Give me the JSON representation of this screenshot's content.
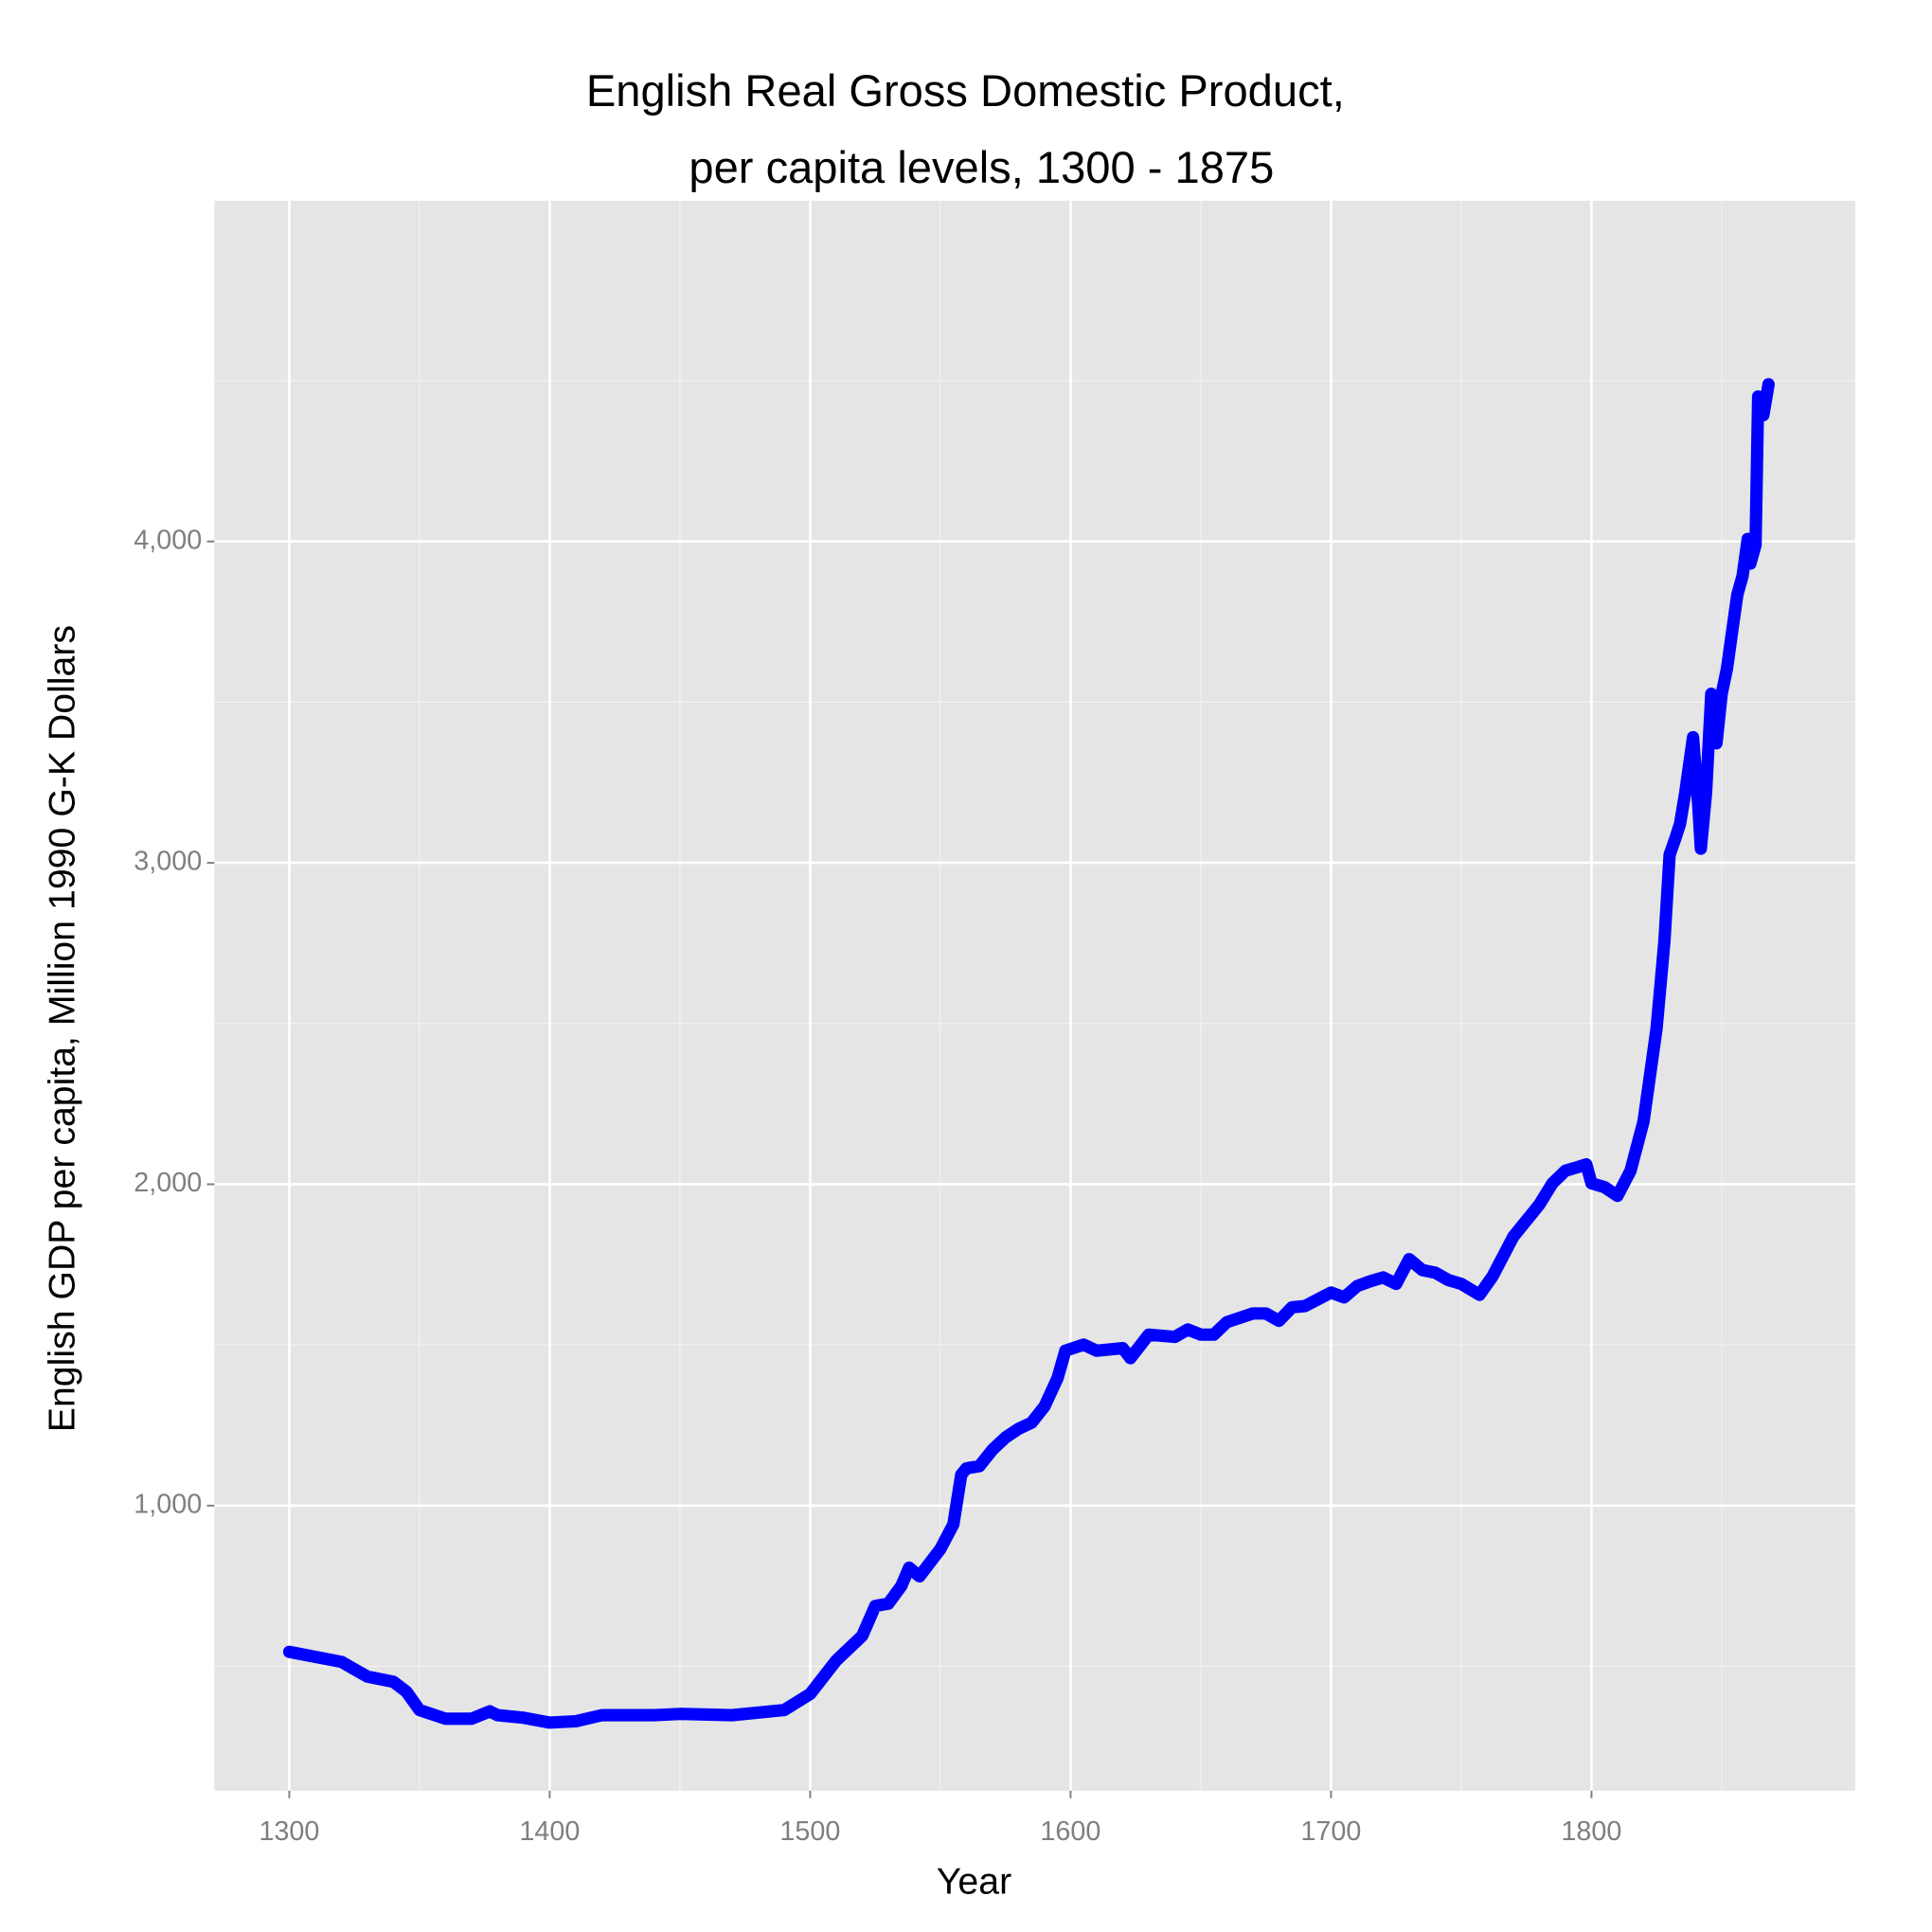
{
  "chart_data": {
    "type": "line",
    "title": [
      "English Real Gross Domestic Product,",
      "per capita levels, 1300 - 1875"
    ],
    "x_label": "Year",
    "y_label": "English GDP per capita, Million 1990 G-K Dollars",
    "x": [
      1300,
      1320,
      1330,
      1340,
      1345,
      1350,
      1360,
      1370,
      1377,
      1380,
      1390,
      1400,
      1410,
      1420,
      1440,
      1450,
      1470,
      1490,
      1500,
      1510,
      1520,
      1525,
      1530,
      1535,
      1538,
      1542,
      1550,
      1555,
      1558,
      1560,
      1565,
      1570,
      1575,
      1580,
      1585,
      1590,
      1595,
      1598,
      1605,
      1610,
      1620,
      1623,
      1630,
      1640,
      1645,
      1650,
      1655,
      1660,
      1670,
      1675,
      1680,
      1685,
      1690,
      1700,
      1705,
      1710,
      1715,
      1720,
      1725,
      1730,
      1735,
      1740,
      1745,
      1750,
      1757,
      1762,
      1770,
      1780,
      1785,
      1790,
      1795,
      1798,
      1800,
      1805,
      1810,
      1815,
      1820,
      1825,
      1828,
      1830,
      1832,
      1834,
      1836,
      1838,
      1839,
      1841,
      1842,
      1844,
      1846,
      1848,
      1850,
      1852,
      1854,
      1856,
      1858,
      1860,
      1861,
      1863,
      1864,
      1866,
      1868
    ],
    "series": [
      {
        "name": "GDP per capita",
        "color": "#0000ff",
        "values": [
          545,
          514,
          468,
          452,
          421,
          364,
          337,
          337,
          360,
          348,
          340,
          325,
          329,
          348,
          348,
          352,
          348,
          364,
          414,
          518,
          595,
          688,
          695,
          750,
          807,
          780,
          865,
          942,
          1096,
          1116,
          1123,
          1174,
          1212,
          1239,
          1258,
          1309,
          1397,
          1482,
          1501,
          1482,
          1490,
          1459,
          1532,
          1525,
          1548,
          1532,
          1532,
          1571,
          1598,
          1598,
          1575,
          1617,
          1621,
          1663,
          1648,
          1683,
          1698,
          1710,
          1690,
          1767,
          1733,
          1725,
          1702,
          1690,
          1656,
          1713,
          1837,
          1937,
          2003,
          2042,
          2054,
          2062,
          2003,
          1991,
          1964,
          2042,
          2196,
          2485,
          2755,
          3025,
          3071,
          3121,
          3218,
          3333,
          3391,
          3179,
          3044,
          3218,
          3526,
          3372,
          3526,
          3603,
          3719,
          3834,
          3892,
          4008,
          3931,
          3989,
          4451,
          4393,
          4489
        ]
      }
    ],
    "xlim": [
      1271.25,
      1901.25
    ],
    "xticks": [
      1300,
      1400,
      1500,
      1600,
      1700,
      1800
    ],
    "x_minor_ticks": [
      1350,
      1450,
      1550,
      1650,
      1750,
      1850
    ],
    "ylim": [
      113,
      5060
    ],
    "yticks": [
      {
        "value": 1000,
        "label": "1,000"
      },
      {
        "value": 2000,
        "label": "2,000"
      },
      {
        "value": 3000,
        "label": "3,000"
      },
      {
        "value": 4000,
        "label": "4,000"
      }
    ],
    "y_minor_ticks": [
      500,
      1500,
      2500,
      3500,
      4500
    ],
    "grid": true,
    "panel_color": "#e5e5e5"
  }
}
